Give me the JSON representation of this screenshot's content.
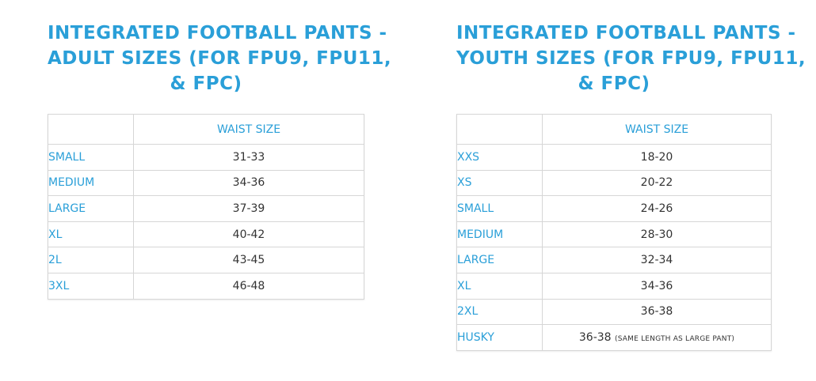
{
  "adult": {
    "title_lines": [
      "INTEGRATED FOOTBALL PANTS -",
      "ADULT SIZES (FOR FPU9, FPU11,",
      "& FPC)"
    ],
    "header_waist": "WAIST SIZE",
    "rows": [
      {
        "size": "SMALL",
        "waist": "31-33"
      },
      {
        "size": "MEDIUM",
        "waist": "34-36"
      },
      {
        "size": "LARGE",
        "waist": "37-39"
      },
      {
        "size": "XL",
        "waist": "40-42"
      },
      {
        "size": "2L",
        "waist": "43-45"
      },
      {
        "size": "3XL",
        "waist": "46-48"
      }
    ]
  },
  "youth": {
    "title_lines": [
      "INTEGRATED FOOTBALL PANTS -",
      "YOUTH SIZES (FOR FPU9, FPU11,",
      "& FPC)"
    ],
    "header_waist": "WAIST SIZE",
    "rows": [
      {
        "size": "XXS",
        "waist": "18-20"
      },
      {
        "size": "XS",
        "waist": "20-22"
      },
      {
        "size": "SMALL",
        "waist": "24-26"
      },
      {
        "size": "MEDIUM",
        "waist": "28-30"
      },
      {
        "size": "LARGE",
        "waist": "32-34"
      },
      {
        "size": "XL",
        "waist": "34-36"
      },
      {
        "size": "2XL",
        "waist": "36-38"
      },
      {
        "size": "HUSKY",
        "waist": "36-38",
        "note": "(SAME LENGTH AS LARGE PANT)"
      }
    ]
  },
  "colors": {
    "accent": "#2a9fd8",
    "text": "#333333",
    "border": "#d6d6d6"
  }
}
